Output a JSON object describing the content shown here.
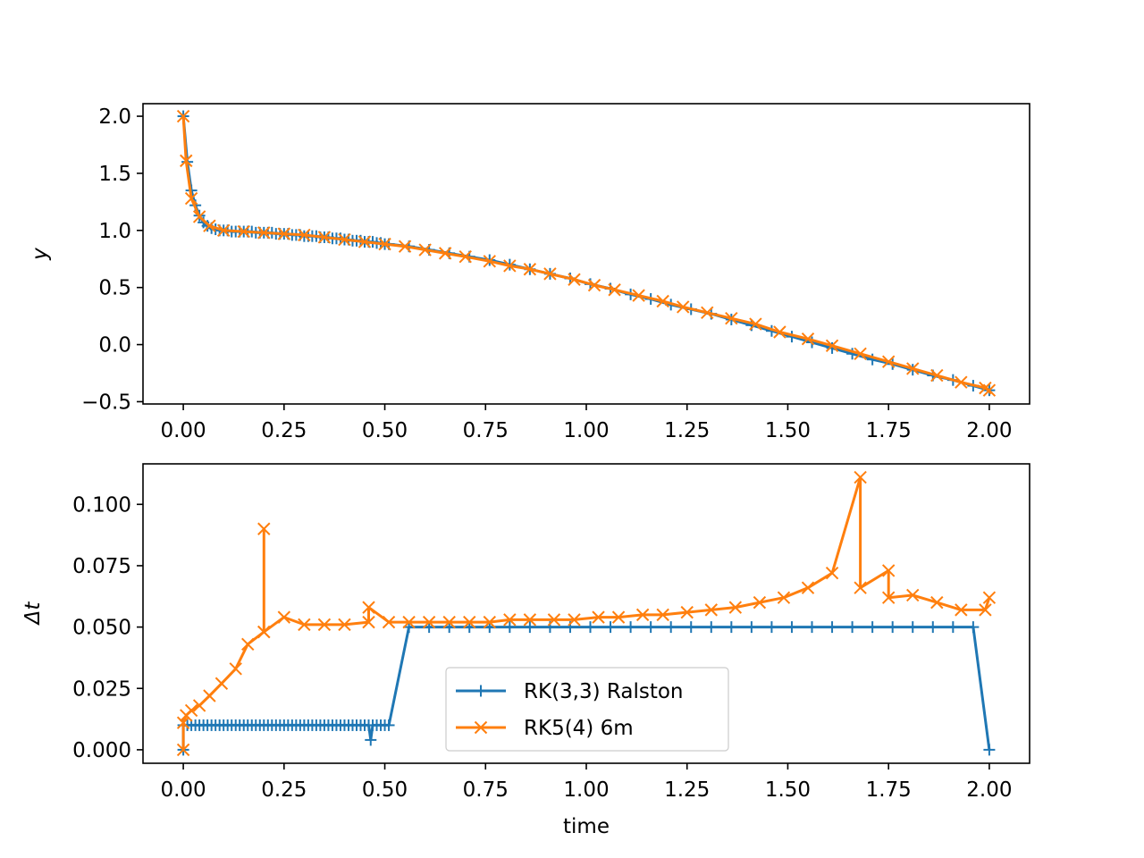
{
  "colors": {
    "ralston": "#1f77b4",
    "rk54": "#ff7f0e"
  },
  "chart_data": [
    {
      "type": "line",
      "xlabel": "",
      "ylabel": "y",
      "xlim": [
        -0.1,
        2.1
      ],
      "ylim": [
        -0.52,
        2.11
      ],
      "xticks": [
        0.0,
        0.25,
        0.5,
        0.75,
        1.0,
        1.25,
        1.5,
        1.75,
        2.0
      ],
      "xticklabels": [
        "0.00",
        "0.25",
        "0.50",
        "0.75",
        "1.00",
        "1.25",
        "1.50",
        "1.75",
        "2.00"
      ],
      "yticks": [
        -0.5,
        0.0,
        0.5,
        1.0,
        1.5,
        2.0
      ],
      "yticklabels": [
        "−0.5",
        "0.0",
        "0.5",
        "1.0",
        "1.5",
        "2.0"
      ],
      "grid": false,
      "series": [
        {
          "name": "RK(3,3) Ralston",
          "marker": "+",
          "x": [
            0.0,
            0.01,
            0.02,
            0.03,
            0.04,
            0.05,
            0.06,
            0.07,
            0.08,
            0.09,
            0.1,
            0.11,
            0.12,
            0.13,
            0.14,
            0.15,
            0.16,
            0.17,
            0.18,
            0.19,
            0.2,
            0.21,
            0.22,
            0.23,
            0.24,
            0.25,
            0.26,
            0.27,
            0.28,
            0.29,
            0.3,
            0.31,
            0.32,
            0.33,
            0.34,
            0.35,
            0.36,
            0.37,
            0.38,
            0.39,
            0.4,
            0.41,
            0.42,
            0.43,
            0.44,
            0.45,
            0.46,
            0.47,
            0.48,
            0.49,
            0.5,
            0.51,
            0.56,
            0.61,
            0.66,
            0.71,
            0.76,
            0.81,
            0.86,
            0.91,
            0.96,
            1.01,
            1.06,
            1.11,
            1.16,
            1.21,
            1.26,
            1.31,
            1.36,
            1.41,
            1.46,
            1.51,
            1.56,
            1.61,
            1.66,
            1.71,
            1.76,
            1.81,
            1.86,
            1.91,
            1.96,
            2.0
          ],
          "y": [
            2.0,
            1.6,
            1.35,
            1.22,
            1.13,
            1.07,
            1.04,
            1.02,
            1.01,
            1.0,
            1.0,
            1.0,
            0.99,
            0.99,
            0.99,
            0.99,
            0.99,
            0.99,
            0.98,
            0.98,
            0.98,
            0.98,
            0.98,
            0.97,
            0.97,
            0.97,
            0.97,
            0.96,
            0.96,
            0.96,
            0.95,
            0.95,
            0.95,
            0.95,
            0.94,
            0.94,
            0.94,
            0.93,
            0.93,
            0.93,
            0.92,
            0.92,
            0.91,
            0.91,
            0.91,
            0.9,
            0.9,
            0.9,
            0.89,
            0.89,
            0.88,
            0.88,
            0.86,
            0.83,
            0.8,
            0.77,
            0.74,
            0.7,
            0.66,
            0.62,
            0.58,
            0.53,
            0.49,
            0.44,
            0.4,
            0.35,
            0.31,
            0.27,
            0.22,
            0.17,
            0.12,
            0.07,
            0.02,
            -0.03,
            -0.08,
            -0.13,
            -0.17,
            -0.22,
            -0.27,
            -0.31,
            -0.36,
            -0.4
          ]
        },
        {
          "name": "RK5(4) 6m",
          "marker": "x",
          "x": [
            0.0,
            0.007,
            0.02,
            0.04,
            0.065,
            0.1,
            0.15,
            0.2,
            0.25,
            0.3,
            0.35,
            0.4,
            0.45,
            0.5,
            0.55,
            0.6,
            0.65,
            0.7,
            0.76,
            0.81,
            0.86,
            0.91,
            0.97,
            1.02,
            1.07,
            1.13,
            1.19,
            1.24,
            1.3,
            1.36,
            1.42,
            1.48,
            1.55,
            1.61,
            1.68,
            1.75,
            1.81,
            1.87,
            1.93,
            1.99,
            2.0
          ],
          "y": [
            2.0,
            1.61,
            1.28,
            1.12,
            1.04,
            1.0,
            0.99,
            0.98,
            0.97,
            0.96,
            0.94,
            0.92,
            0.9,
            0.88,
            0.86,
            0.83,
            0.8,
            0.77,
            0.73,
            0.69,
            0.66,
            0.62,
            0.57,
            0.52,
            0.48,
            0.43,
            0.38,
            0.33,
            0.28,
            0.23,
            0.18,
            0.11,
            0.05,
            -0.01,
            -0.08,
            -0.15,
            -0.21,
            -0.27,
            -0.33,
            -0.38,
            -0.4
          ]
        }
      ]
    },
    {
      "type": "line",
      "xlabel": "time",
      "ylabel": "Δt",
      "xlim": [
        -0.1,
        2.1
      ],
      "ylim": [
        -0.0055,
        0.1165
      ],
      "xticks": [
        0.0,
        0.25,
        0.5,
        0.75,
        1.0,
        1.25,
        1.5,
        1.75,
        2.0
      ],
      "xticklabels": [
        "0.00",
        "0.25",
        "0.50",
        "0.75",
        "1.00",
        "1.25",
        "1.50",
        "1.75",
        "2.00"
      ],
      "yticks": [
        0.0,
        0.025,
        0.05,
        0.075,
        0.1
      ],
      "yticklabels": [
        "0.000",
        "0.025",
        "0.050",
        "0.075",
        "0.100"
      ],
      "grid": false,
      "legend": "lower-center",
      "series": [
        {
          "name": "RK(3,3) Ralston",
          "marker": "+",
          "x": [
            0.0,
            0.0,
            0.01,
            0.02,
            0.03,
            0.04,
            0.05,
            0.06,
            0.07,
            0.08,
            0.09,
            0.1,
            0.11,
            0.12,
            0.13,
            0.14,
            0.15,
            0.16,
            0.17,
            0.18,
            0.19,
            0.2,
            0.21,
            0.22,
            0.23,
            0.24,
            0.25,
            0.26,
            0.27,
            0.28,
            0.29,
            0.3,
            0.31,
            0.32,
            0.33,
            0.34,
            0.35,
            0.36,
            0.37,
            0.38,
            0.39,
            0.4,
            0.41,
            0.42,
            0.43,
            0.44,
            0.45,
            0.46,
            0.465,
            0.47,
            0.48,
            0.49,
            0.5,
            0.51,
            0.56,
            0.61,
            0.66,
            0.71,
            0.76,
            0.81,
            0.86,
            0.91,
            0.96,
            1.01,
            1.06,
            1.11,
            1.16,
            1.21,
            1.26,
            1.31,
            1.36,
            1.41,
            1.46,
            1.51,
            1.56,
            1.61,
            1.66,
            1.71,
            1.76,
            1.81,
            1.86,
            1.91,
            1.96,
            2.0
          ],
          "y": [
            0.0,
            0.01,
            0.01,
            0.01,
            0.01,
            0.01,
            0.01,
            0.01,
            0.01,
            0.01,
            0.01,
            0.01,
            0.01,
            0.01,
            0.01,
            0.01,
            0.01,
            0.01,
            0.01,
            0.01,
            0.01,
            0.01,
            0.01,
            0.01,
            0.01,
            0.01,
            0.01,
            0.01,
            0.01,
            0.01,
            0.01,
            0.01,
            0.01,
            0.01,
            0.01,
            0.01,
            0.01,
            0.01,
            0.01,
            0.01,
            0.01,
            0.01,
            0.01,
            0.01,
            0.01,
            0.01,
            0.01,
            0.01,
            0.004,
            0.01,
            0.01,
            0.01,
            0.01,
            0.01,
            0.05,
            0.05,
            0.05,
            0.05,
            0.05,
            0.05,
            0.05,
            0.05,
            0.05,
            0.05,
            0.05,
            0.05,
            0.05,
            0.05,
            0.05,
            0.05,
            0.05,
            0.05,
            0.05,
            0.05,
            0.05,
            0.05,
            0.05,
            0.05,
            0.05,
            0.05,
            0.05,
            0.05,
            0.05,
            0.0
          ]
        },
        {
          "name": "RK5(4) 6m",
          "marker": "x",
          "x": [
            0.0,
            0.0,
            0.007,
            0.02,
            0.04,
            0.065,
            0.095,
            0.13,
            0.16,
            0.2,
            0.2,
            0.2,
            0.25,
            0.3,
            0.35,
            0.4,
            0.46,
            0.46,
            0.51,
            0.56,
            0.61,
            0.66,
            0.71,
            0.76,
            0.81,
            0.86,
            0.92,
            0.97,
            1.03,
            1.08,
            1.14,
            1.19,
            1.25,
            1.31,
            1.37,
            1.43,
            1.49,
            1.55,
            1.61,
            1.68,
            1.68,
            1.75,
            1.75,
            1.81,
            1.87,
            1.93,
            1.99,
            2.0
          ],
          "y": [
            0.0,
            0.011,
            0.014,
            0.016,
            0.018,
            0.022,
            0.027,
            0.033,
            0.043,
            0.048,
            0.09,
            0.048,
            0.054,
            0.051,
            0.051,
            0.051,
            0.052,
            0.058,
            0.052,
            0.052,
            0.052,
            0.052,
            0.052,
            0.052,
            0.053,
            0.053,
            0.053,
            0.053,
            0.054,
            0.054,
            0.055,
            0.055,
            0.056,
            0.057,
            0.058,
            0.06,
            0.062,
            0.066,
            0.072,
            0.111,
            0.066,
            0.073,
            0.062,
            0.063,
            0.06,
            0.057,
            0.057,
            0.062
          ]
        }
      ]
    }
  ]
}
